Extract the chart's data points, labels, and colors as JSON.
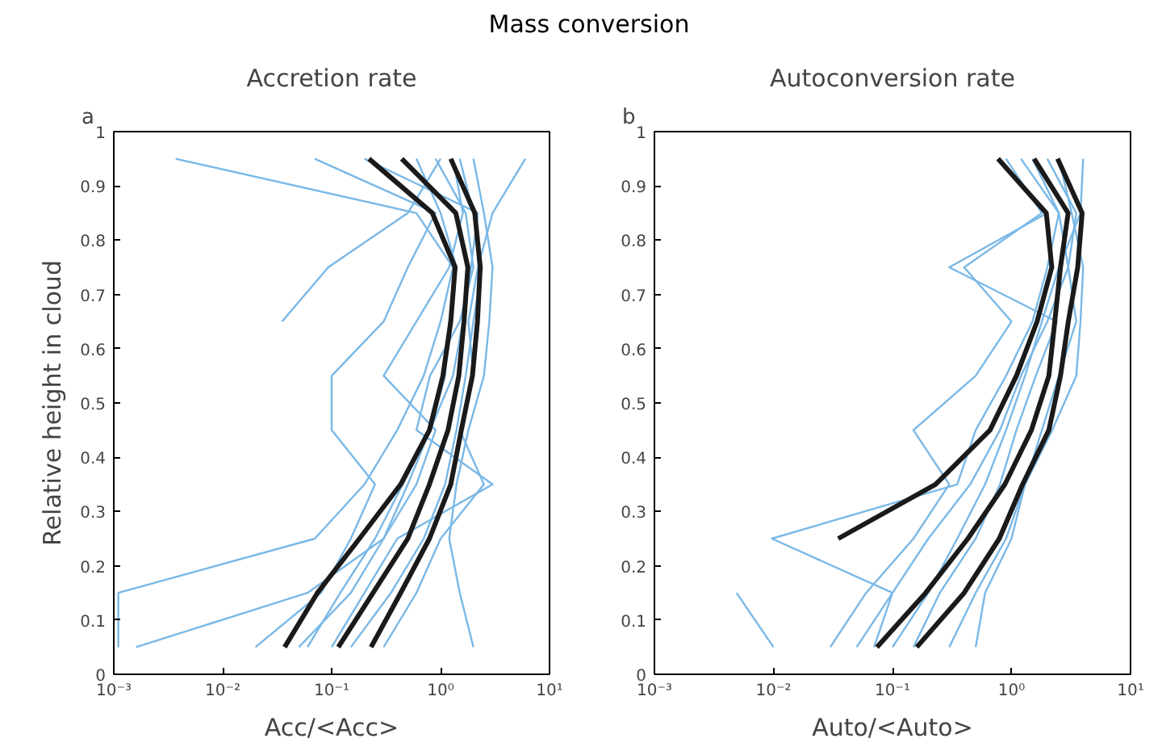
{
  "chart_data": [
    {
      "type": "line",
      "subtitle": "Mass conversion",
      "title": "Accretion rate",
      "annotations": [
        "a"
      ],
      "xlabel": "Acc/<Acc>",
      "ylabel": "Relative height in cloud",
      "log": "x",
      "grid": false,
      "marker": "none",
      "line_style": "solid",
      "xlim": [
        0.001,
        10
      ],
      "ylim": [
        0,
        1
      ],
      "xticks": [
        {
          "value": 0.001,
          "label": "10⁻³"
        },
        {
          "value": 0.01,
          "label": "10⁻²"
        },
        {
          "value": 0.1,
          "label": "10⁻¹"
        },
        {
          "value": 1,
          "label": "10⁰"
        },
        {
          "value": 10,
          "label": "10¹"
        }
      ],
      "yticks": [
        0,
        {
          "value": 0.1,
          "label": "0.1"
        },
        {
          "value": 0.2,
          "label": "0.2"
        },
        {
          "value": 0.3,
          "label": "0.3"
        },
        {
          "value": 0.4,
          "label": "0.4"
        },
        {
          "value": 0.5,
          "label": "0.5"
        },
        {
          "value": 0.6,
          "label": "0.6"
        },
        {
          "value": 0.7,
          "label": "0.7"
        },
        {
          "value": 0.8,
          "label": "0.8"
        },
        {
          "value": 0.9,
          "label": "0.9"
        },
        1
      ],
      "series": [
        {
          "color": "#7ab8e6",
          "x": [
            0.0011,
            0.0011,
            0.07,
            0.2,
            0.4,
            0.7,
            1.0,
            1.3,
            0.6,
            0.0037
          ],
          "values": [
            0.05,
            0.15,
            0.25,
            0.35,
            0.45,
            0.55,
            0.65,
            0.75,
            0.85,
            0.95
          ]
        },
        {
          "color": "#7ab8e6",
          "x": [
            0.0016,
            0.06,
            0.3,
            0.5,
            0.8,
            1.1,
            1.2,
            1.4,
            1.0,
            0.6
          ],
          "values": [
            0.05,
            0.15,
            0.25,
            0.35,
            0.45,
            0.55,
            0.65,
            0.75,
            0.85,
            0.95
          ]
        },
        {
          "color": "#7ab8e6",
          "x": [
            0.02,
            0.08,
            0.15,
            0.25,
            0.1,
            0.1,
            0.3,
            0.5,
            0.9,
            0.07
          ],
          "values": [
            0.05,
            0.15,
            0.25,
            0.35,
            0.45,
            0.55,
            0.65,
            0.75,
            0.85,
            0.95
          ]
        },
        {
          "color": "#7ab8e6",
          "x": [
            0.035,
            0.093,
            0.5,
            1.0
          ],
          "values": [
            0.65,
            0.75,
            0.85,
            0.95
          ]
        },
        {
          "color": "#7ab8e6",
          "x": [
            0.3,
            0.6,
            1.0,
            2.5,
            1.5,
            2.0,
            1.8,
            2.2,
            3.0,
            6.0
          ],
          "values": [
            0.05,
            0.15,
            0.25,
            0.35,
            0.45,
            0.55,
            0.65,
            0.75,
            0.85,
            0.95
          ]
        },
        {
          "color": "#7ab8e6",
          "x": [
            0.1,
            0.2,
            0.4,
            3.0,
            0.6,
            0.8,
            1.5,
            2.0,
            1.7,
            0.9
          ],
          "values": [
            0.05,
            0.15,
            0.25,
            0.35,
            0.45,
            0.55,
            0.65,
            0.75,
            0.85,
            0.95
          ]
        },
        {
          "color": "#7ab8e6",
          "x": [
            0.05,
            0.15,
            0.3,
            0.6,
            0.9,
            0.3,
            0.6,
            1.2,
            1.6,
            1.3
          ],
          "values": [
            0.05,
            0.15,
            0.25,
            0.35,
            0.45,
            0.55,
            0.65,
            0.75,
            0.85,
            0.95
          ]
        },
        {
          "color": "#7ab8e6",
          "x": [
            2.0,
            1.5,
            1.2,
            1.4,
            1.8,
            2.5,
            2.8,
            3.0,
            2.5,
            2.0
          ],
          "values": [
            0.05,
            0.15,
            0.25,
            0.35,
            0.45,
            0.55,
            0.65,
            0.75,
            0.85,
            0.95
          ]
        },
        {
          "color": "#7ab8e6",
          "x": [
            0.15,
            0.35,
            0.7,
            1.1,
            1.4,
            1.7,
            2.0,
            2.4,
            2.0,
            1.5
          ],
          "values": [
            0.05,
            0.15,
            0.25,
            0.35,
            0.45,
            0.55,
            0.65,
            0.75,
            0.85,
            0.95
          ]
        },
        {
          "color": "#7ab8e6",
          "x": [
            0.06,
            0.12,
            0.25,
            0.45,
            0.8,
            1.3,
            1.6,
            1.9,
            2.2,
            0.2
          ],
          "values": [
            0.05,
            0.15,
            0.25,
            0.35,
            0.45,
            0.55,
            0.65,
            0.75,
            0.85,
            0.95
          ]
        },
        {
          "color": "#1a1a1a",
          "x": [
            0.037,
            0.074,
            0.18,
            0.43,
            0.79,
            1.05,
            1.24,
            1.36,
            0.84,
            0.22
          ],
          "values": [
            0.05,
            0.15,
            0.25,
            0.35,
            0.45,
            0.55,
            0.65,
            0.75,
            0.85,
            0.95
          ]
        },
        {
          "color": "#1a1a1a",
          "x": [
            0.115,
            0.24,
            0.5,
            0.79,
            1.17,
            1.47,
            1.64,
            1.78,
            1.38,
            0.44
          ],
          "values": [
            0.05,
            0.15,
            0.25,
            0.35,
            0.45,
            0.55,
            0.65,
            0.75,
            0.85,
            0.95
          ]
        },
        {
          "color": "#1a1a1a",
          "x": [
            0.23,
            0.43,
            0.79,
            1.24,
            1.55,
            1.96,
            2.18,
            2.31,
            2.06,
            1.24
          ],
          "values": [
            0.05,
            0.15,
            0.25,
            0.35,
            0.45,
            0.55,
            0.65,
            0.75,
            0.85,
            0.95
          ]
        }
      ]
    },
    {
      "type": "line",
      "title": "Autoconversion rate",
      "annotations": [
        "b"
      ],
      "xlabel": "Auto/<Auto>",
      "log": "x",
      "grid": false,
      "marker": "none",
      "line_style": "solid",
      "xlim": [
        0.001,
        10
      ],
      "ylim": [
        0,
        1
      ],
      "xticks": [
        {
          "value": 0.001,
          "label": "10⁻³"
        },
        {
          "value": 0.01,
          "label": "10⁻²"
        },
        {
          "value": 0.1,
          "label": "10⁻¹"
        },
        {
          "value": 1,
          "label": "10⁰"
        },
        {
          "value": 10,
          "label": "10¹"
        }
      ],
      "yticks": [
        0,
        {
          "value": 0.1,
          "label": "0.1"
        },
        {
          "value": 0.2,
          "label": "0.2"
        },
        {
          "value": 0.3,
          "label": "0.3"
        },
        {
          "value": 0.4,
          "label": "0.4"
        },
        {
          "value": 0.5,
          "label": "0.5"
        },
        {
          "value": 0.6,
          "label": "0.6"
        },
        {
          "value": 0.7,
          "label": "0.7"
        },
        {
          "value": 0.8,
          "label": "0.8"
        },
        {
          "value": 0.9,
          "label": "0.9"
        },
        1
      ],
      "series": [
        {
          "color": "#7ab8e6",
          "x": [
            0.01,
            0.0049
          ],
          "values": [
            0.05,
            0.15
          ]
        },
        {
          "color": "#7ab8e6",
          "x": [
            0.07,
            0.1,
            0.0097,
            0.35,
            0.5,
            0.9,
            1.5,
            2.0,
            2.5,
            1.2
          ],
          "values": [
            0.05,
            0.15,
            0.25,
            0.35,
            0.45,
            0.55,
            0.65,
            0.75,
            0.85,
            0.95
          ]
        },
        {
          "color": "#7ab8e6",
          "x": [
            0.03,
            0.06,
            0.15,
            0.3,
            0.15,
            0.5,
            1.0,
            0.4,
            1.8,
            0.9
          ],
          "values": [
            0.05,
            0.15,
            0.25,
            0.35,
            0.45,
            0.55,
            0.65,
            0.75,
            0.85,
            0.95
          ]
        },
        {
          "color": "#7ab8e6",
          "x": [
            0.3,
            0.5,
            0.9,
            1.3,
            1.8,
            2.5,
            3.5,
            3.0,
            2.5,
            1.5
          ],
          "values": [
            0.05,
            0.15,
            0.25,
            0.35,
            0.45,
            0.55,
            0.65,
            0.75,
            0.85,
            0.95
          ]
        },
        {
          "color": "#7ab8e6",
          "x": [
            0.1,
            0.2,
            0.35,
            0.6,
            0.9,
            1.3,
            1.8,
            2.5,
            3.8,
            4.0
          ],
          "values": [
            0.05,
            0.15,
            0.25,
            0.35,
            0.45,
            0.55,
            0.65,
            0.75,
            0.85,
            0.95
          ]
        },
        {
          "color": "#7ab8e6",
          "x": [
            0.05,
            0.1,
            0.2,
            0.45,
            0.8,
            1.2,
            2.0,
            3.0,
            3.5,
            2.0
          ],
          "values": [
            0.05,
            0.15,
            0.25,
            0.35,
            0.45,
            0.55,
            0.65,
            0.75,
            0.85,
            0.95
          ]
        },
        {
          "color": "#7ab8e6",
          "x": [
            0.5,
            0.6,
            1.0,
            1.3,
            2.2,
            3.5,
            3.8,
            4.0,
            3.2,
            2.5
          ],
          "values": [
            0.05,
            0.15,
            0.25,
            0.35,
            0.45,
            0.55,
            0.65,
            0.75,
            0.85,
            0.95
          ]
        },
        {
          "color": "#7ab8e6",
          "x": [
            0.15,
            0.25,
            0.5,
            0.8,
            1.1,
            1.6,
            2.4,
            0.3,
            2.0,
            0.8
          ],
          "values": [
            0.05,
            0.15,
            0.25,
            0.35,
            0.45,
            0.55,
            0.65,
            0.75,
            0.85,
            0.95
          ]
        },
        {
          "color": "#1a1a1a",
          "x": [
            0.035,
            0.23,
            0.66,
            1.1,
            1.64,
            2.18,
            1.96,
            0.77
          ],
          "values": [
            0.25,
            0.35,
            0.45,
            0.55,
            0.65,
            0.75,
            0.85,
            0.95
          ]
        },
        {
          "color": "#1a1a1a",
          "x": [
            0.074,
            0.19,
            0.43,
            0.88,
            1.47,
            2.06,
            2.31,
            2.58,
            2.99,
            1.55
          ],
          "values": [
            0.05,
            0.15,
            0.25,
            0.35,
            0.45,
            0.55,
            0.65,
            0.75,
            0.85,
            0.95
          ]
        },
        {
          "color": "#1a1a1a",
          "x": [
            0.16,
            0.4,
            0.79,
            1.24,
            2.06,
            2.58,
            3.0,
            3.6,
            3.92,
            2.44
          ],
          "values": [
            0.05,
            0.15,
            0.25,
            0.35,
            0.45,
            0.55,
            0.65,
            0.75,
            0.85,
            0.95
          ]
        }
      ]
    }
  ]
}
